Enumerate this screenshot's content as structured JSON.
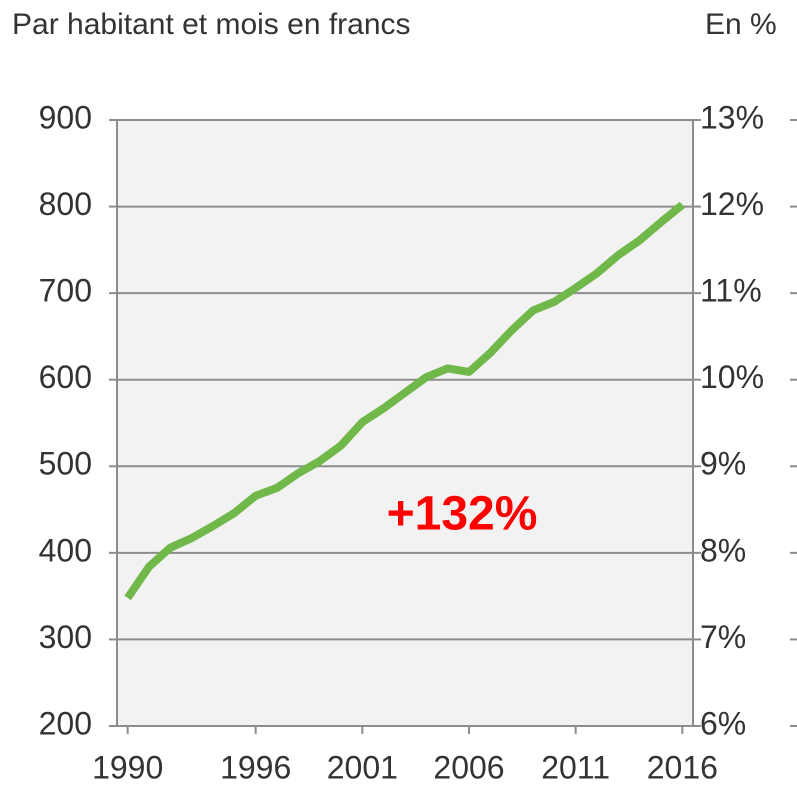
{
  "chart_data": {
    "type": "line",
    "y_axis_label": "Par habitant et mois en francs",
    "y2_axis_label": "En %",
    "annotation": "+132%",
    "x": [
      1990,
      1991,
      1992,
      1993,
      1994,
      1995,
      1996,
      1997,
      1998,
      1999,
      2000,
      2001,
      2002,
      2003,
      2004,
      2005,
      2006,
      2007,
      2008,
      2009,
      2010,
      2011,
      2012,
      2013,
      2014,
      2015,
      2016
    ],
    "series": [
      {
        "name": "Par habitant et mois",
        "color": "#70b84a",
        "values": [
          348,
          384,
          406,
          417,
          431,
          446,
          466,
          475,
          492,
          506,
          524,
          551,
          567,
          585,
          603,
          613,
          609,
          631,
          657,
          680,
          690,
          706,
          723,
          744,
          761,
          782,
          802
        ]
      }
    ],
    "xlim": [
      1989.5,
      2016.5
    ],
    "xticks": [
      1990,
      1996,
      2001,
      2006,
      2011,
      2016
    ],
    "ylim": [
      200,
      900
    ],
    "yticks": [
      200,
      300,
      400,
      500,
      600,
      700,
      800,
      900
    ],
    "y2lim": [
      6,
      13
    ],
    "y2ticks": [
      {
        "value": 6,
        "label": "6%"
      },
      {
        "value": 7,
        "label": "7%"
      },
      {
        "value": 8,
        "label": "8%"
      },
      {
        "value": 9,
        "label": "9%"
      },
      {
        "value": 10,
        "label": "10%"
      },
      {
        "value": 11,
        "label": "11%"
      },
      {
        "value": 12,
        "label": "12%"
      },
      {
        "value": 13,
        "label": "13%"
      }
    ],
    "grid": true
  }
}
